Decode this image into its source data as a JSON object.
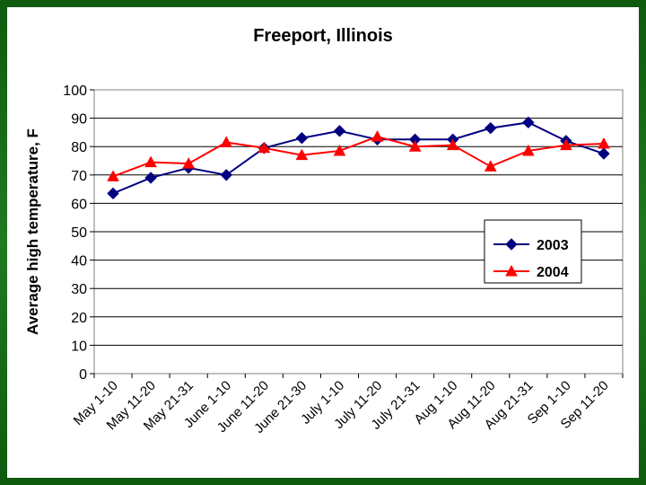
{
  "chart_data": {
    "type": "line",
    "title": "Freeport, Illinois",
    "xlabel": "",
    "ylabel": "Average high temperature, F",
    "ylim": [
      0,
      100
    ],
    "yticks": [
      0,
      10,
      20,
      30,
      40,
      50,
      60,
      70,
      80,
      90,
      100
    ],
    "grid": true,
    "legend_position": "right",
    "categories": [
      "May 1-10",
      "May 11-20",
      "May 21-31",
      "June 1-10",
      "June 11-20",
      "June 21-30",
      "July 1-10",
      "July 11-20",
      "July 21-31",
      "Aug 1-10",
      "Aug 11-20",
      "Aug 21-31",
      "Sep 1-10",
      "Sep 11-20"
    ],
    "series": [
      {
        "name": "2003",
        "color": "#000080",
        "marker": "diamond",
        "values": [
          63.5,
          69,
          72.5,
          70,
          79.5,
          83,
          85.5,
          82.5,
          82.5,
          82.5,
          86.5,
          88.5,
          82,
          77.5
        ]
      },
      {
        "name": "2004",
        "color": "#ff0000",
        "marker": "triangle",
        "values": [
          69.5,
          74.5,
          74,
          81.5,
          79.5,
          77,
          78.5,
          83.5,
          80,
          80.5,
          73,
          78.5,
          80.5,
          81
        ]
      }
    ]
  }
}
